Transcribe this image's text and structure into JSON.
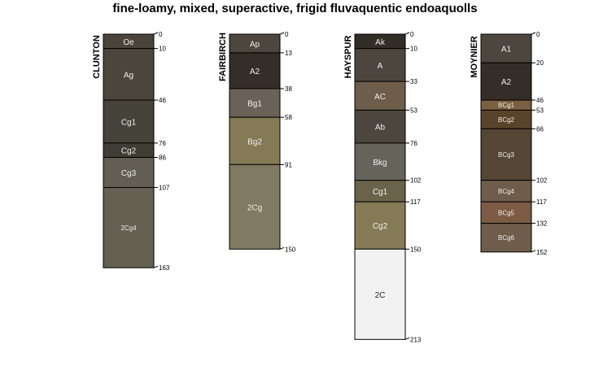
{
  "title": "fine-loamy, mixed, superactive, frigid fluvaquentic endoaquolls",
  "chart_data": {
    "type": "soil-profile",
    "depth_unit": "cm",
    "profiles": [
      {
        "name": "CLUNTON",
        "horizons": [
          {
            "name": "Oe",
            "top": 0,
            "bottom": 10,
            "color": "#4a443b"
          },
          {
            "name": "Ag",
            "top": 10,
            "bottom": 46,
            "color": "#4b453c"
          },
          {
            "name": "Cg1",
            "top": 46,
            "bottom": 76,
            "color": "#46433a"
          },
          {
            "name": "Cg2",
            "top": 76,
            "bottom": 86,
            "color": "#403d35"
          },
          {
            "name": "Cg3",
            "top": 86,
            "bottom": 107,
            "color": "#625e53"
          },
          {
            "name": "2Cg4",
            "top": 107,
            "bottom": 163,
            "color": "#666053"
          }
        ]
      },
      {
        "name": "FAIRBIRCH",
        "horizons": [
          {
            "name": "Ap",
            "top": 0,
            "bottom": 13,
            "color": "#4d463e"
          },
          {
            "name": "A2",
            "top": 13,
            "bottom": 38,
            "color": "#352d27"
          },
          {
            "name": "Bg1",
            "top": 38,
            "bottom": 58,
            "color": "#6a6258"
          },
          {
            "name": "Bg2",
            "top": 58,
            "bottom": 91,
            "color": "#857a56"
          },
          {
            "name": "2Cg",
            "top": 91,
            "bottom": 150,
            "color": "#807a62"
          }
        ]
      },
      {
        "name": "HAYSPUR",
        "horizons": [
          {
            "name": "Ak",
            "top": 0,
            "bottom": 10,
            "color": "#332d28"
          },
          {
            "name": "A",
            "top": 10,
            "bottom": 33,
            "color": "#4d463e"
          },
          {
            "name": "AC",
            "top": 33,
            "bottom": 53,
            "color": "#6d5d4a"
          },
          {
            "name": "Ab",
            "top": 53,
            "bottom": 76,
            "color": "#4d463e"
          },
          {
            "name": "Bkg",
            "top": 76,
            "bottom": 102,
            "color": "#66645a"
          },
          {
            "name": "Cg1",
            "top": 102,
            "bottom": 117,
            "color": "#6a634a"
          },
          {
            "name": "Cg2",
            "top": 117,
            "bottom": 150,
            "color": "#857a56"
          },
          {
            "name": "2C",
            "top": 150,
            "bottom": 213,
            "color": "#f2f2f2"
          }
        ]
      },
      {
        "name": "MOYNIER",
        "horizons": [
          {
            "name": "A1",
            "top": 0,
            "bottom": 20,
            "color": "#4d463e"
          },
          {
            "name": "A2",
            "top": 20,
            "bottom": 46,
            "color": "#352d27"
          },
          {
            "name": "BCg1",
            "top": 46,
            "bottom": 53,
            "color": "#7a5f40"
          },
          {
            "name": "BCg2",
            "top": 53,
            "bottom": 66,
            "color": "#5a432b"
          },
          {
            "name": "BCg3",
            "top": 66,
            "bottom": 102,
            "color": "#554535"
          },
          {
            "name": "BCg4",
            "top": 102,
            "bottom": 117,
            "color": "#6d5d4a"
          },
          {
            "name": "BCg5",
            "top": 117,
            "bottom": 132,
            "color": "#7d5a44"
          },
          {
            "name": "BCg6",
            "top": 132,
            "bottom": 152,
            "color": "#6d5d4a"
          }
        ]
      }
    ]
  }
}
